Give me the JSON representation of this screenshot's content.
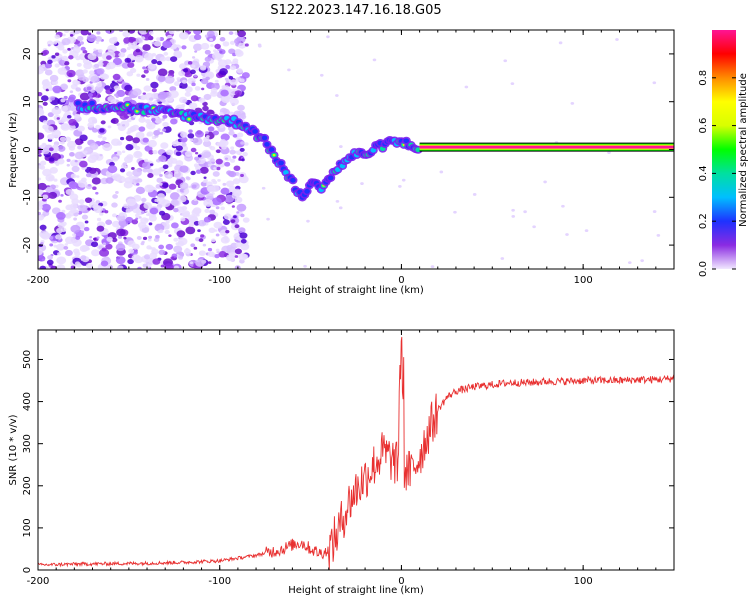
{
  "title": "S122.2023.147.16.18.G05",
  "chart_data": [
    {
      "type": "heatmap",
      "xlabel": "Height of straight line (km)",
      "ylabel": "Frequency (Hz)",
      "xlim": [
        -200,
        150
      ],
      "ylim": [
        -25,
        25
      ],
      "xticks": [
        -200,
        -100,
        0,
        100
      ],
      "yticks": [
        -20,
        -10,
        0,
        10,
        20
      ],
      "colorbar": {
        "label": "Normalized spectral amplitude",
        "range": [
          0,
          1
        ],
        "ticks": [
          "0.0",
          "0.2",
          "0.4",
          "0.6",
          "0.8"
        ],
        "colors": [
          "#f1e8ff",
          "#8a2be2",
          "#1e32ff",
          "#00bfff",
          "#00e0a0",
          "#00ff00",
          "#d8ff00",
          "#ffff00",
          "#ff8c00",
          "#ff0000",
          "#ff1493"
        ]
      },
      "ridge": {
        "x": [
          -175,
          -165,
          -155,
          -145,
          -135,
          -125,
          -115,
          -105,
          -95,
          -88,
          -82,
          -76,
          -70,
          -65,
          -60,
          -55,
          -50,
          -45,
          -40,
          -35,
          -30,
          -25,
          -20,
          -15,
          -10,
          -5,
          0,
          5,
          10,
          150
        ],
        "y": [
          9,
          9,
          9,
          8.5,
          8,
          7.5,
          7,
          6.5,
          6,
          5.5,
          4,
          2,
          -1,
          -4,
          -7,
          -10,
          -7,
          -8,
          -6,
          -4,
          -2,
          -1,
          -1,
          0,
          1,
          1.5,
          1.5,
          1,
          0.5,
          0.5
        ]
      },
      "carrier": {
        "x_start": 10,
        "x_end": 150,
        "frequency": 0.5
      }
    },
    {
      "type": "line",
      "xlabel": "Height of straight line (km)",
      "ylabel": "SNR (10 * v/v)",
      "xlim": [
        -200,
        150
      ],
      "ylim": [
        0,
        570
      ],
      "xticks": [
        -200,
        -100,
        0,
        100
      ],
      "yticks": [
        0,
        100,
        200,
        300,
        400,
        500
      ],
      "color": "#e83030",
      "series": [
        {
          "x": [
            -200,
            -180,
            -160,
            -140,
            -120,
            -100,
            -90,
            -80,
            -70,
            -65,
            -60,
            -55,
            -50,
            -45,
            -40,
            -35,
            -30,
            -25,
            -20,
            -15,
            -10,
            -5,
            0,
            5,
            10,
            15,
            20,
            25,
            30,
            40,
            50,
            60,
            70,
            80,
            90,
            100,
            110,
            120,
            130,
            140,
            150
          ],
          "values": [
            12,
            14,
            15,
            16,
            18,
            22,
            28,
            35,
            45,
            50,
            60,
            65,
            50,
            40,
            45,
            90,
            150,
            190,
            220,
            250,
            280,
            260,
            240,
            230,
            270,
            330,
            380,
            410,
            425,
            435,
            440,
            445,
            445,
            448,
            448,
            450,
            450,
            450,
            452,
            452,
            455
          ]
        }
      ]
    }
  ]
}
